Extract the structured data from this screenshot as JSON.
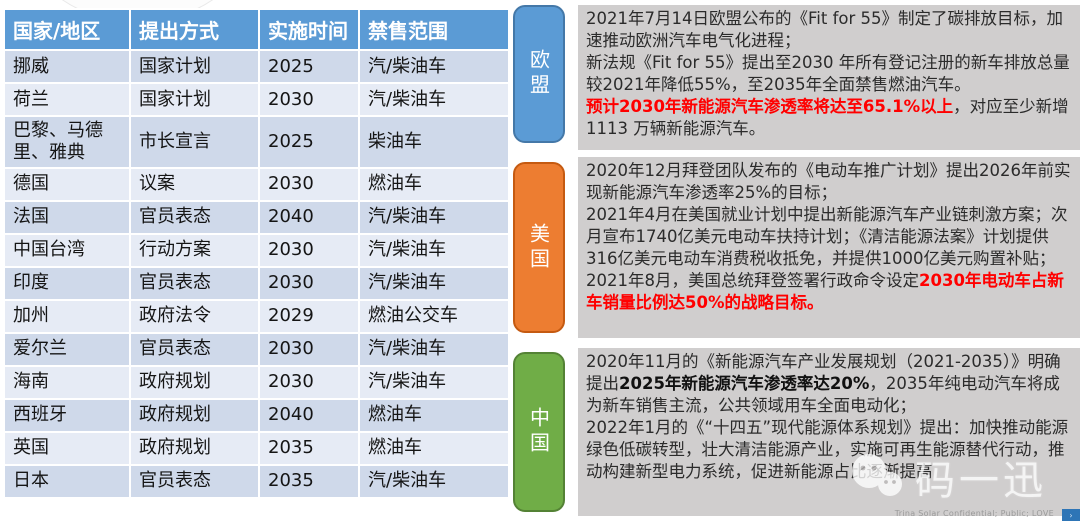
{
  "table": {
    "headers": [
      "国家/地区",
      "提出方式",
      "实施时间",
      "禁售范围"
    ],
    "header_bg": "#5B9BD5",
    "row_colors": [
      "#cfd9ea",
      "#e6ebf5"
    ],
    "rows": [
      [
        "挪威",
        "国家计划",
        "2025",
        "汽/柴油车"
      ],
      [
        "荷兰",
        "国家计划",
        "2030",
        "汽/柴油车"
      ],
      [
        "巴黎、马德里、雅典",
        "市长宣言",
        "2025",
        "柴油车"
      ],
      [
        "德国",
        "议案",
        "2030",
        "燃油车"
      ],
      [
        "法国",
        "官员表态",
        "2040",
        "汽/柴油车"
      ],
      [
        "中国台湾",
        "行动方案",
        "2030",
        "汽/柴油车"
      ],
      [
        "印度",
        "官员表态",
        "2030",
        "汽/柴油车"
      ],
      [
        "加州",
        "政府法令",
        "2029",
        "燃油公交车"
      ],
      [
        "爱尔兰",
        "官员表态",
        "2030",
        "汽/柴油车"
      ],
      [
        "海南",
        "政府规划",
        "2030",
        "汽/柴油车"
      ],
      [
        "西班牙",
        "政府规划",
        "2040",
        "燃油车"
      ],
      [
        "英国",
        "政府规划",
        "2035",
        "燃油车"
      ],
      [
        "日本",
        "官员表态",
        "2035",
        "汽/柴油车"
      ]
    ]
  },
  "panels": [
    {
      "label": "欧盟",
      "color": "#5B9BD5",
      "border": "#4478A8",
      "segments": [
        {
          "style": "n",
          "text": "2021年7月14日欧盟公布的《Fit for 55》制定了碳排放目标，加速推动欧洲汽车电气化进程；\n新法规《Fit for 55》提出至2030 年所有登记注册的新车排放总量较2021年降低55%，至2035年全面禁售燃油汽车。\n"
        },
        {
          "style": "rb",
          "text": "预计2030年新能源汽车渗透率将达至65.1%以上"
        },
        {
          "style": "n",
          "text": "，对应至少新增1113 万辆新能源汽车。"
        }
      ]
    },
    {
      "label": "美国",
      "color": "#ED7D31",
      "border": "#C55A11",
      "segments": [
        {
          "style": "n",
          "text": "2020年12月拜登团队发布的《电动车推广计划》提出2026年前实现新能源汽车渗透率25%的目标；\n2021年4月在美国就业计划中提出新能源汽车产业链刺激方案；次月宣布1740亿美元电动车扶持计划；《清洁能源法案》计划提供316亿美元电动车消费税收抵免，并提供1000亿美元购置补贴；\n2021年8月，美国总统拜登签署行政命令设定"
        },
        {
          "style": "rb",
          "text": "2030年电动车占新车销量比例达50%的战略目标。"
        }
      ]
    },
    {
      "label": "中国",
      "color": "#70AD47",
      "border": "#548235",
      "segments": [
        {
          "style": "n",
          "text": "2020年11月的《新能源汽车产业发展规划（2021-2035）》明确提出"
        },
        {
          "style": "bb",
          "text": "2025年新能源汽车渗透率达20%"
        },
        {
          "style": "n",
          "text": "，2035年纯电动汽车将成为新车销售主流，公共领域用车全面电动化；\n2022年1月的《“十四五”现代能源体系规划》提出：加快推动能源绿色低碳转型，壮大清洁能源产业，实施可再生能源替代行动，推动构建新型电力系统，促进新能源占比逐渐提高"
        }
      ]
    }
  ],
  "watermark": {
    "icon": "wechat-icon",
    "text": "码一迅"
  },
  "footer": {
    "text": "Trina Solar Confidential; Public; LOVE"
  },
  "corner": {
    "color": "#2E75B6"
  }
}
